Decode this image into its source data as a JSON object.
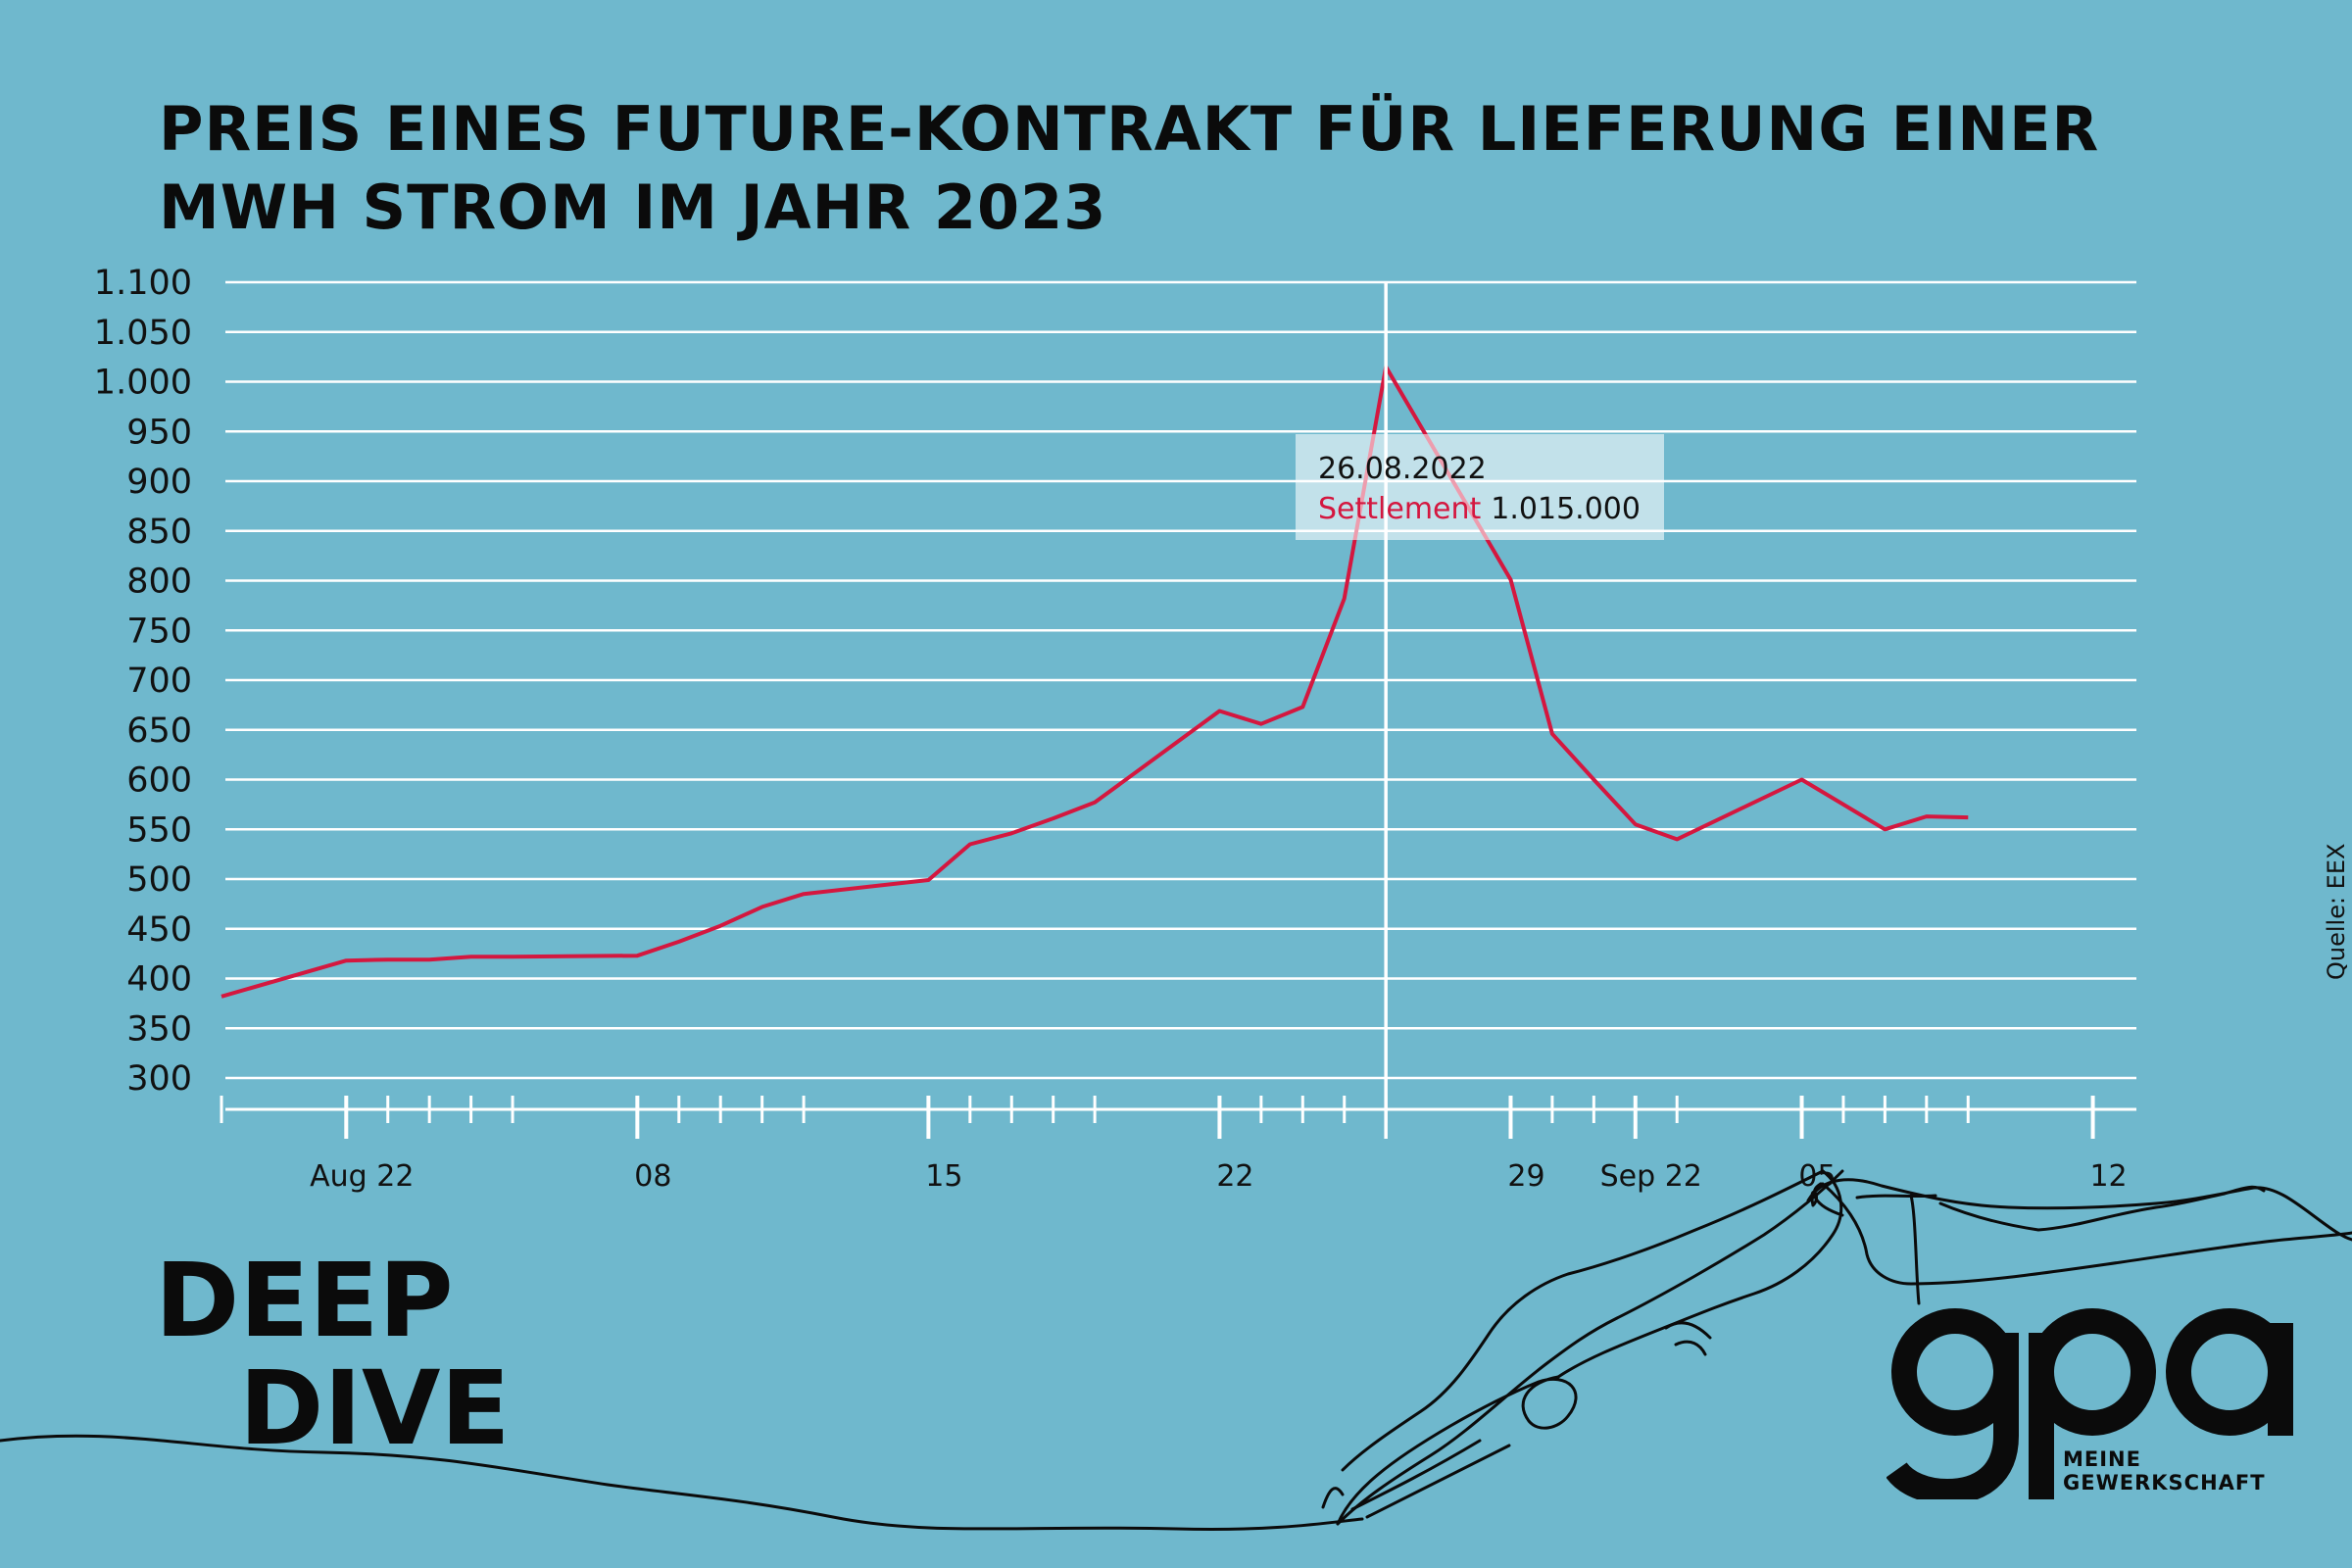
{
  "title_lines": [
    "PREIS EINES FUTURE-KONTRAKT FÜR LIEFERUNG EINER",
    "MWH STROM IM JAHR 2023"
  ],
  "source": "Quelle: EEX",
  "branding": {
    "deep_dive": [
      "DEEP",
      "DIVE"
    ],
    "logo_letters": "gpa",
    "logo_subtitle": [
      "MEINE",
      "GEWERKSCHAFT"
    ]
  },
  "colors": {
    "background": "#6fb8cd",
    "line": "#d4173f",
    "grid": "#ffffff",
    "text": "#0b0b0b"
  },
  "tooltip": {
    "date": "26.08.2022",
    "label": "Settlement",
    "value": "1.015.000"
  },
  "chart_data": {
    "type": "line",
    "title": "PREIS EINES FUTURE-KONTRAKT FÜR LIEFERUNG EINER MWH STROM IM JAHR 2023",
    "xlabel": "",
    "ylabel": "",
    "ylim": [
      300,
      1100
    ],
    "yticks": [
      300,
      350,
      400,
      450,
      500,
      550,
      600,
      650,
      700,
      750,
      800,
      850,
      900,
      950,
      1000,
      1050,
      1100
    ],
    "ytick_labels": [
      "300",
      "350",
      "400",
      "450",
      "500",
      "550",
      "600",
      "650",
      "700",
      "750",
      "800",
      "850",
      "900",
      "950",
      "1.000",
      "1.050",
      "1.100"
    ],
    "xlim": [
      "2022-07-29",
      "2022-09-13"
    ],
    "xticks": [
      {
        "date": "2022-08-01",
        "label": "Aug 22"
      },
      {
        "date": "2022-08-08",
        "label": "08"
      },
      {
        "date": "2022-08-15",
        "label": "15"
      },
      {
        "date": "2022-08-22",
        "label": "22"
      },
      {
        "date": "2022-08-29",
        "label": "29"
      },
      {
        "date": "2022-09-01",
        "label": "Sep 22"
      },
      {
        "date": "2022-09-05",
        "label": "05"
      },
      {
        "date": "2022-09-12",
        "label": "12"
      }
    ],
    "grid": true,
    "highlight_date": "2022-08-26",
    "series": [
      {
        "name": "Settlement",
        "points": [
          {
            "x": "2022-07-29",
            "y": 382
          },
          {
            "x": "2022-08-01",
            "y": 418
          },
          {
            "x": "2022-08-02",
            "y": 419
          },
          {
            "x": "2022-08-03",
            "y": 419
          },
          {
            "x": "2022-08-04",
            "y": 422
          },
          {
            "x": "2022-08-05",
            "y": 422
          },
          {
            "x": "2022-08-08",
            "y": 423
          },
          {
            "x": "2022-08-09",
            "y": 437
          },
          {
            "x": "2022-08-10",
            "y": 453
          },
          {
            "x": "2022-08-11",
            "y": 472
          },
          {
            "x": "2022-08-12",
            "y": 485
          },
          {
            "x": "2022-08-15",
            "y": 499
          },
          {
            "x": "2022-08-16",
            "y": 535
          },
          {
            "x": "2022-08-17",
            "y": 546
          },
          {
            "x": "2022-08-18",
            "y": 561
          },
          {
            "x": "2022-08-19",
            "y": 577
          },
          {
            "x": "2022-08-22",
            "y": 669
          },
          {
            "x": "2022-08-23",
            "y": 656
          },
          {
            "x": "2022-08-24",
            "y": 673
          },
          {
            "x": "2022-08-25",
            "y": 782
          },
          {
            "x": "2022-08-26",
            "y": 1015
          },
          {
            "x": "2022-08-29",
            "y": 801
          },
          {
            "x": "2022-08-30",
            "y": 646
          },
          {
            "x": "2022-08-31",
            "y": 600
          },
          {
            "x": "2022-09-01",
            "y": 555
          },
          {
            "x": "2022-09-02",
            "y": 540
          },
          {
            "x": "2022-09-05",
            "y": 600
          },
          {
            "x": "2022-09-06",
            "y": 575
          },
          {
            "x": "2022-09-07",
            "y": 550
          },
          {
            "x": "2022-09-08",
            "y": 563
          },
          {
            "x": "2022-09-09",
            "y": 562
          }
        ]
      }
    ]
  }
}
